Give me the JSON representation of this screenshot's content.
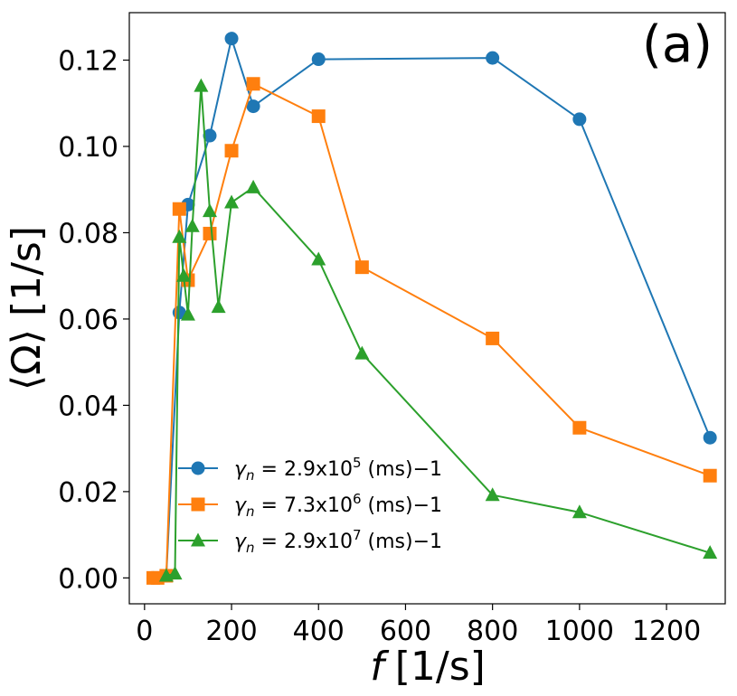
{
  "chart_data": {
    "type": "line",
    "panel_label": "(a)",
    "xlabel_var": "f",
    "xlabel_unit": "[1/s]",
    "ylabel": "⟨Ω⟩ [1/s]",
    "xlim": [
      -35,
      1335
    ],
    "ylim": [
      -0.006,
      0.131
    ],
    "xticks": [
      0,
      200,
      400,
      600,
      800,
      1000,
      1200
    ],
    "xtick_labels": [
      "0",
      "200",
      "400",
      "600",
      "800",
      "1000",
      "1200"
    ],
    "yticks": [
      0.0,
      0.02,
      0.04,
      0.06,
      0.08,
      0.1,
      0.12
    ],
    "ytick_labels": [
      "0.00",
      "0.02",
      "0.04",
      "0.06",
      "0.08",
      "0.10",
      "0.12"
    ],
    "legend_position": "lower-left",
    "series": [
      {
        "name": "γn = 2.9x10^5 (ms)−1",
        "legend_prefix": "γ",
        "legend_sub": "n",
        "legend_mid": " =  2.9x10",
        "legend_sup": "5",
        "legend_suffix": " (ms)−1",
        "color": "#1f77b4",
        "marker": "circle",
        "x": [
          20,
          50,
          80,
          100,
          150,
          200,
          250,
          400,
          800,
          1000,
          1300
        ],
        "y": [
          0.0,
          0.0005,
          0.0615,
          0.0865,
          0.1025,
          0.125,
          0.1093,
          0.1202,
          0.1205,
          0.1063,
          0.0325
        ]
      },
      {
        "name": "γn = 7.3x10^6 (ms)−1",
        "legend_prefix": "γ",
        "legend_sub": "n",
        "legend_mid": " =  7.3x10",
        "legend_sup": "6",
        "legend_suffix": " (ms)−1",
        "color": "#ff7f0e",
        "marker": "square",
        "x": [
          20,
          30,
          50,
          80,
          100,
          150,
          200,
          250,
          400,
          500,
          800,
          1000,
          1300
        ],
        "y": [
          0.0,
          0.0,
          0.0005,
          0.0855,
          0.069,
          0.0798,
          0.099,
          0.1145,
          0.107,
          0.072,
          0.0555,
          0.0348,
          0.0237
        ]
      },
      {
        "name": "γn = 2.9x10^7 (ms)−1",
        "legend_prefix": "γ",
        "legend_sub": "n",
        "legend_mid": " =  2.9x10",
        "legend_sup": "7",
        "legend_suffix": " (ms)−1",
        "color": "#2ca02c",
        "marker": "triangle",
        "x": [
          50,
          70,
          80,
          90,
          100,
          110,
          130,
          150,
          170,
          200,
          250,
          400,
          500,
          800,
          1000,
          1300
        ],
        "y": [
          0.0005,
          0.001,
          0.079,
          0.07,
          0.061,
          0.0815,
          0.114,
          0.085,
          0.0628,
          0.087,
          0.0905,
          0.0738,
          0.052,
          0.0192,
          0.0152,
          0.0058
        ]
      }
    ]
  }
}
